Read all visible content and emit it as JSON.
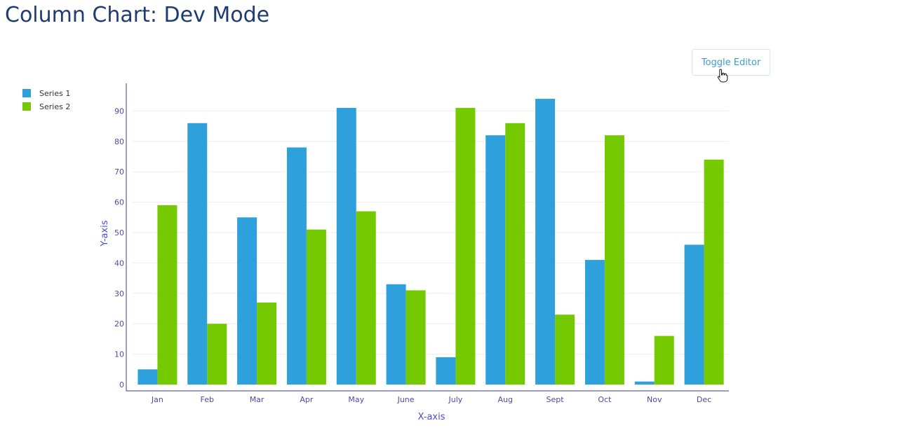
{
  "page": {
    "title": "Column Chart: Dev Mode",
    "toggle_label": "Toggle Editor"
  },
  "colors": {
    "series1": "#2ea1dc",
    "series2": "#75c900",
    "axis": "#3a3a8c",
    "tick_text": "#4a4aa8",
    "title": "#1f3c73"
  },
  "chart_data": {
    "type": "bar",
    "title": "",
    "xlabel": "X-axis",
    "ylabel": "Y-axis",
    "ylim": [
      0,
      98
    ],
    "yticks": [
      0,
      10,
      20,
      30,
      40,
      50,
      60,
      70,
      80,
      90
    ],
    "grid": true,
    "legend_position": "top-left",
    "categories": [
      "Jan",
      "Feb",
      "Mar",
      "Apr",
      "May",
      "June",
      "July",
      "Aug",
      "Sept",
      "Oct",
      "Nov",
      "Dec"
    ],
    "series": [
      {
        "name": "Series 1",
        "color": "#2ea1dc",
        "values": [
          5,
          86,
          55,
          78,
          91,
          33,
          9,
          82,
          94,
          41,
          1,
          46
        ]
      },
      {
        "name": "Series 2",
        "color": "#75c900",
        "values": [
          59,
          20,
          27,
          51,
          57,
          31,
          91,
          86,
          23,
          82,
          16,
          74
        ]
      }
    ]
  }
}
